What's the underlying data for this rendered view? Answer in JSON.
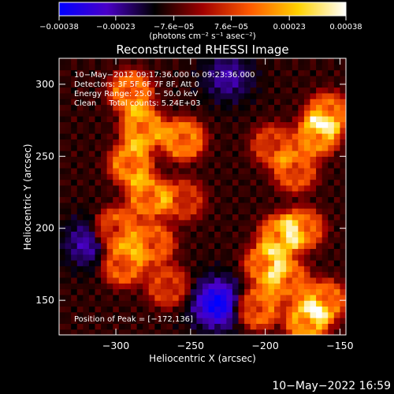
{
  "chart_data": {
    "type": "heatmap",
    "title": "Reconstructed RHESSI Image",
    "xlabel": "Heliocentric X (arcsec)",
    "ylabel": "Heliocentric Y (arcsec)",
    "xlim": [
      -338,
      -146
    ],
    "ylim": [
      126,
      318
    ],
    "x_ticks": [
      -300,
      -250,
      -200,
      -150
    ],
    "y_ticks": [
      150,
      200,
      250,
      300
    ],
    "x_tick_labels": [
      "−300",
      "−250",
      "−200",
      "−150"
    ],
    "y_tick_labels": [
      "150",
      "200",
      "250",
      "300"
    ],
    "colorbar": {
      "unit_label": "(photons cm⁻² s⁻¹ asec⁻²)",
      "range": [
        -0.00038,
        0.00038
      ],
      "tick_values": [
        -0.00038,
        -0.00023,
        -7.6e-05,
        7.6e-05,
        0.00023,
        0.00038
      ],
      "tick_labels": [
        "−0.00038",
        "−0.00023",
        "−7.6e−05",
        "7.6e−05",
        "0.00023",
        "0.00038"
      ],
      "colormap_stops": [
        "#0000ff",
        "#4a00c8",
        "#000000",
        "#a00000",
        "#ff5a00",
        "#ffd200",
        "#ffffff"
      ]
    },
    "annotations": {
      "time_range": "10−May−2012 09:17:36.000 to 09:23:36.000",
      "detectors": "Detectors: 3F 5F 6F 7F 8F, Att 0",
      "energy": "Energy Range: 25.0 − 50.0 keV",
      "method": "Clean     Total counts: 5.24E+03",
      "peak": "Position of Peak = [−172,136]"
    },
    "peak_position": [
      -172,
      136
    ],
    "sources": [
      {
        "x": -290,
        "y": 295,
        "intensity": 0.85
      },
      {
        "x": -282,
        "y": 270,
        "intensity": 0.95
      },
      {
        "x": -255,
        "y": 262,
        "intensity": 0.9
      },
      {
        "x": -290,
        "y": 245,
        "intensity": 0.9
      },
      {
        "x": -278,
        "y": 222,
        "intensity": 0.85
      },
      {
        "x": -300,
        "y": 200,
        "intensity": 0.8
      },
      {
        "x": -275,
        "y": 190,
        "intensity": 0.75
      },
      {
        "x": -295,
        "y": 175,
        "intensity": 0.8
      },
      {
        "x": -265,
        "y": 160,
        "intensity": 0.6
      },
      {
        "x": -255,
        "y": 220,
        "intensity": 0.55
      },
      {
        "x": -165,
        "y": 265,
        "intensity": 0.9
      },
      {
        "x": -158,
        "y": 280,
        "intensity": 0.8
      },
      {
        "x": -180,
        "y": 240,
        "intensity": 0.7
      },
      {
        "x": -195,
        "y": 258,
        "intensity": 0.6
      },
      {
        "x": -190,
        "y": 195,
        "intensity": 0.85
      },
      {
        "x": -175,
        "y": 200,
        "intensity": 0.75
      },
      {
        "x": -200,
        "y": 175,
        "intensity": 0.8
      },
      {
        "x": -185,
        "y": 165,
        "intensity": 0.75
      },
      {
        "x": -172,
        "y": 136,
        "intensity": 1.0
      },
      {
        "x": -205,
        "y": 145,
        "intensity": 0.85
      },
      {
        "x": -160,
        "y": 150,
        "intensity": 0.8
      }
    ],
    "negative_regions": [
      {
        "x": -232,
        "y": 148,
        "intensity": 0.9
      },
      {
        "x": -318,
        "y": 190,
        "intensity": 0.5
      },
      {
        "x": -225,
        "y": 305,
        "intensity": 0.45
      }
    ]
  },
  "footer": {
    "date": "10−May−2022 16:59"
  }
}
